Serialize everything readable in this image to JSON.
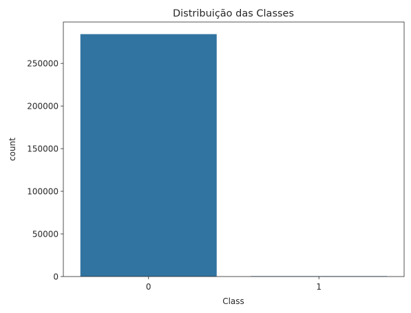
{
  "chart_data": {
    "type": "bar",
    "title": "Distribuição das Classes",
    "xlabel": "Class",
    "ylabel": "count",
    "categories": [
      "0",
      "1"
    ],
    "values": [
      284315,
      492
    ],
    "ylim": [
      0,
      298531
    ],
    "yticks": [
      0,
      50000,
      100000,
      150000,
      200000,
      250000
    ],
    "grid": false,
    "legend": "none",
    "bar_color": "#3274a1"
  }
}
